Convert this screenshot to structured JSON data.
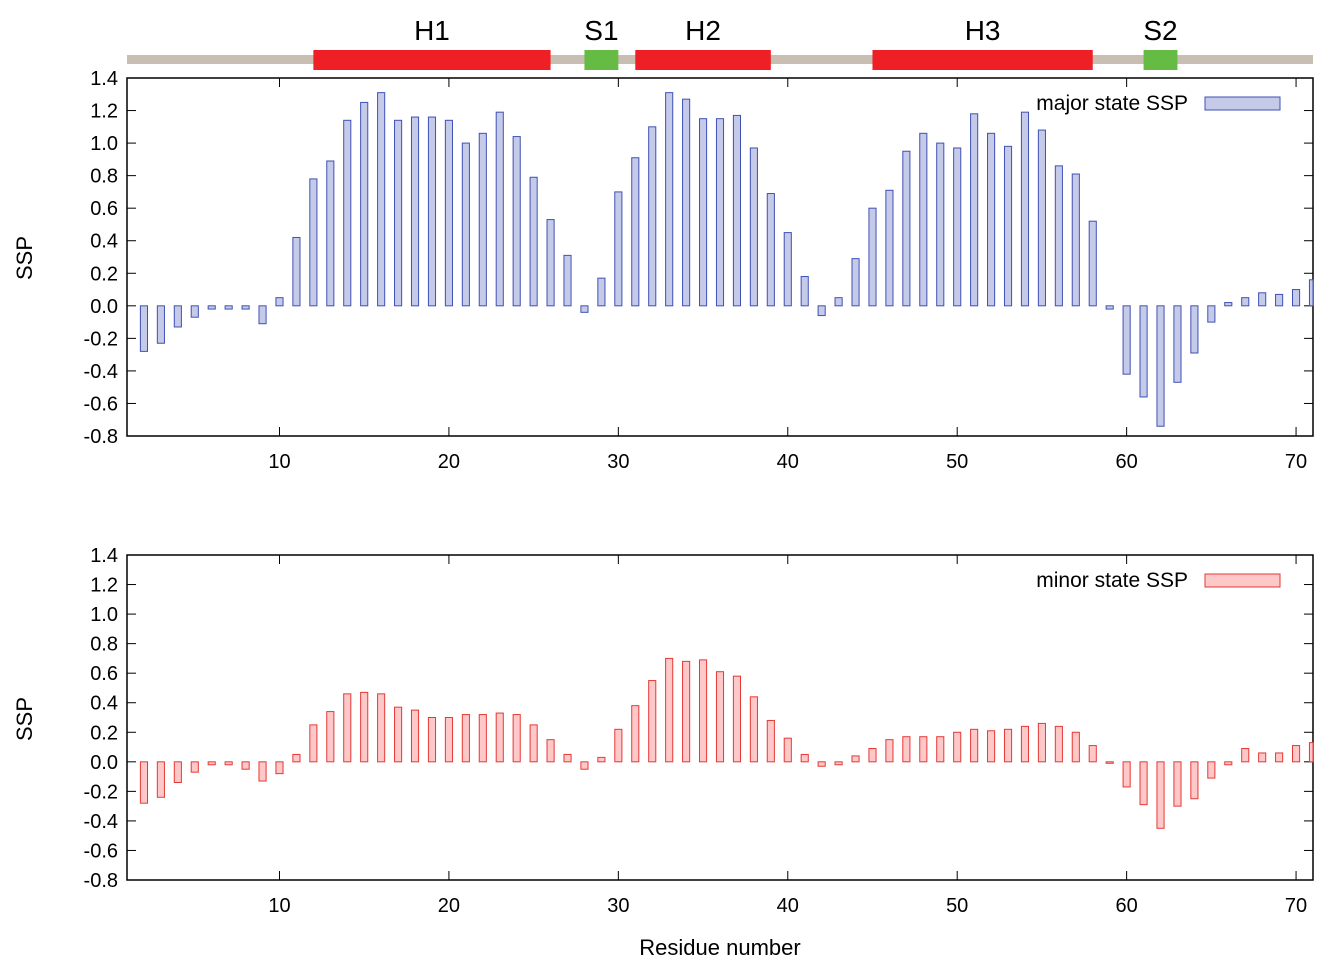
{
  "secondary_structure": {
    "elements": [
      {
        "label": "H1",
        "type": "helix",
        "start": 12,
        "end": 26,
        "color": "#ee1f25"
      },
      {
        "label": "S1",
        "type": "strand",
        "start": 28,
        "end": 30,
        "color": "#66bb44"
      },
      {
        "label": "H2",
        "type": "helix",
        "start": 31,
        "end": 39,
        "color": "#ee1f25"
      },
      {
        "label": "H3",
        "type": "helix",
        "start": 45,
        "end": 58,
        "color": "#ee1f25"
      },
      {
        "label": "S2",
        "type": "strand",
        "start": 61,
        "end": 63,
        "color": "#66bb44"
      }
    ],
    "backbone_color": "#c8bfb2"
  },
  "chart_data": [
    {
      "type": "bar",
      "ylabel": "SSP",
      "xlabel": "",
      "xlim": [
        1,
        71
      ],
      "ylim": [
        -0.8,
        1.4
      ],
      "yticks": [
        "-0.8",
        "-0.6",
        "-0.4",
        "-0.2",
        "0.0",
        "0.2",
        "0.4",
        "0.6",
        "0.8",
        "1.0",
        "1.2",
        "1.4"
      ],
      "xticks": [
        "10",
        "20",
        "30",
        "40",
        "50",
        "60",
        "70"
      ],
      "legend_position": "top-right",
      "series": [
        {
          "name": "major state SSP",
          "fill": "#c5cae9",
          "stroke": "#3f51b5",
          "x": [
            2,
            3,
            4,
            5,
            6,
            7,
            8,
            9,
            10,
            11,
            12,
            13,
            14,
            15,
            16,
            17,
            18,
            19,
            20,
            21,
            22,
            23,
            24,
            25,
            26,
            27,
            28,
            29,
            30,
            31,
            32,
            33,
            34,
            35,
            36,
            37,
            38,
            39,
            40,
            41,
            42,
            43,
            44,
            45,
            46,
            47,
            48,
            49,
            50,
            51,
            52,
            53,
            54,
            55,
            56,
            57,
            58,
            59,
            60,
            61,
            62,
            63,
            64,
            65,
            66,
            67,
            68,
            69,
            70,
            71
          ],
          "values": [
            -0.28,
            -0.23,
            -0.13,
            -0.07,
            -0.02,
            -0.02,
            -0.02,
            -0.11,
            0.05,
            0.42,
            0.78,
            0.89,
            1.14,
            1.25,
            1.31,
            1.14,
            1.16,
            1.16,
            1.14,
            1.0,
            1.06,
            1.19,
            1.04,
            0.79,
            0.53,
            0.31,
            -0.04,
            0.17,
            0.7,
            0.91,
            1.1,
            1.31,
            1.27,
            1.15,
            1.15,
            1.17,
            0.97,
            0.69,
            0.45,
            0.18,
            -0.06,
            0.05,
            0.29,
            0.6,
            0.71,
            0.95,
            1.06,
            1.0,
            0.97,
            1.18,
            1.06,
            0.98,
            1.19,
            1.08,
            0.86,
            0.81,
            0.52,
            -0.02,
            -0.42,
            -0.56,
            -0.74,
            -0.47,
            -0.29,
            -0.1,
            0.02,
            0.05,
            0.08,
            0.07,
            0.1,
            0.16
          ]
        }
      ]
    },
    {
      "type": "bar",
      "ylabel": "SSP",
      "xlabel": "Residue number",
      "xlim": [
        1,
        71
      ],
      "ylim": [
        -0.8,
        1.4
      ],
      "yticks": [
        "-0.8",
        "-0.6",
        "-0.4",
        "-0.2",
        "0.0",
        "0.2",
        "0.4",
        "0.6",
        "0.8",
        "1.0",
        "1.2",
        "1.4"
      ],
      "xticks": [
        "10",
        "20",
        "30",
        "40",
        "50",
        "60",
        "70"
      ],
      "legend_position": "top-right",
      "series": [
        {
          "name": "minor state SSP",
          "fill": "#ffc8c8",
          "stroke": "#e53935",
          "x": [
            2,
            3,
            4,
            5,
            6,
            7,
            8,
            9,
            10,
            11,
            12,
            13,
            14,
            15,
            16,
            17,
            18,
            19,
            20,
            21,
            22,
            23,
            24,
            25,
            26,
            27,
            28,
            29,
            30,
            31,
            32,
            33,
            34,
            35,
            36,
            37,
            38,
            39,
            40,
            41,
            42,
            43,
            44,
            45,
            46,
            47,
            48,
            49,
            50,
            51,
            52,
            53,
            54,
            55,
            56,
            57,
            58,
            59,
            60,
            61,
            62,
            63,
            64,
            65,
            66,
            67,
            68,
            69,
            70,
            71
          ],
          "values": [
            -0.28,
            -0.24,
            -0.14,
            -0.07,
            -0.02,
            -0.02,
            -0.05,
            -0.13,
            -0.08,
            0.05,
            0.25,
            0.34,
            0.46,
            0.47,
            0.46,
            0.37,
            0.35,
            0.3,
            0.3,
            0.32,
            0.32,
            0.33,
            0.32,
            0.25,
            0.15,
            0.05,
            -0.05,
            0.03,
            0.22,
            0.38,
            0.55,
            0.7,
            0.68,
            0.69,
            0.61,
            0.58,
            0.44,
            0.28,
            0.16,
            0.05,
            -0.03,
            -0.02,
            0.04,
            0.09,
            0.15,
            0.17,
            0.17,
            0.17,
            0.2,
            0.22,
            0.21,
            0.22,
            0.24,
            0.26,
            0.24,
            0.2,
            0.11,
            -0.01,
            -0.17,
            -0.29,
            -0.45,
            -0.3,
            -0.25,
            -0.11,
            -0.02,
            0.09,
            0.06,
            0.06,
            0.11,
            0.13
          ]
        }
      ]
    }
  ]
}
